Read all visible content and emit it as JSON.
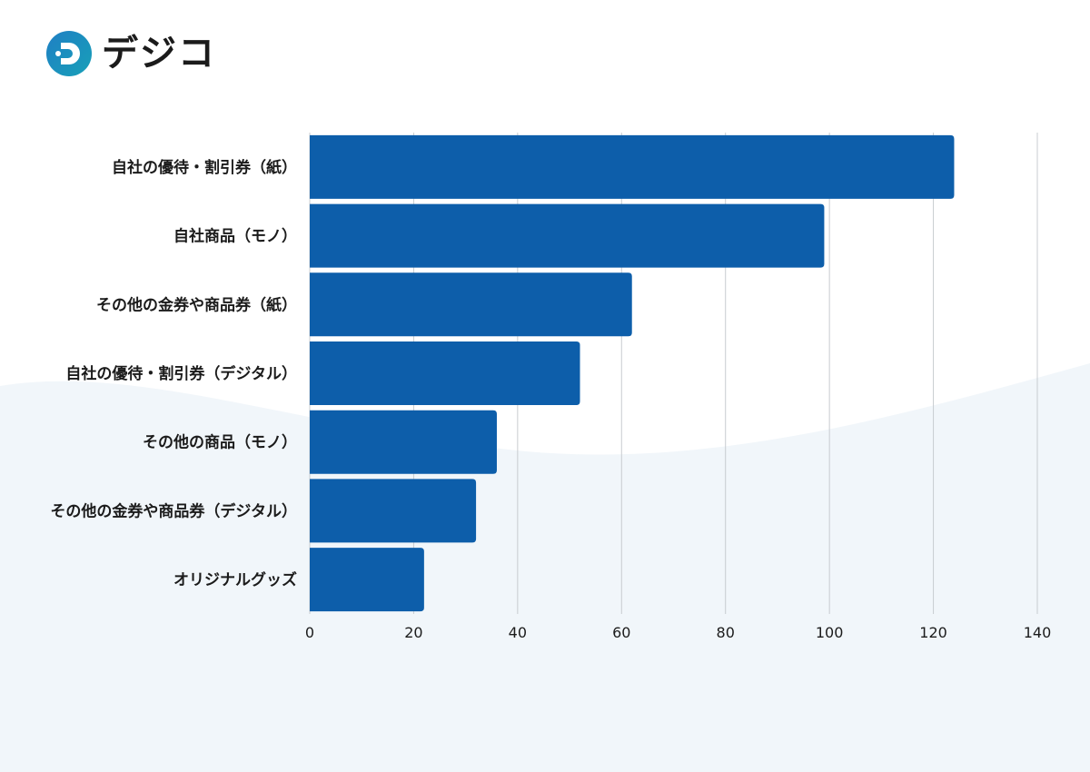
{
  "brand": {
    "name": "デジコ",
    "colors": {
      "accent": "#1f7fc4",
      "accent2": "#18a0b8",
      "dot": "#1f7fc4"
    }
  },
  "chart_data": {
    "type": "bar",
    "orientation": "horizontal",
    "categories": [
      "自社の優待・割引券（紙）",
      "自社商品（モノ）",
      "その他の金券や商品券（紙）",
      "自社の優待・割引券（デジタル）",
      "その他の商品（モノ）",
      "その他の金券や商品券（デジタル）",
      "オリジナルグッズ"
    ],
    "values": [
      124,
      99,
      62,
      52,
      36,
      32,
      22
    ],
    "x_ticks": [
      0,
      20,
      40,
      60,
      80,
      100,
      120,
      140
    ],
    "xlim": [
      0,
      140
    ],
    "grid": true,
    "legend": "none",
    "title": "",
    "xlabel": "",
    "ylabel": "",
    "colors": {
      "bar": "#0d5eaa",
      "grid": "#c8ccd0",
      "background_wave": "#f1f6fa"
    }
  }
}
